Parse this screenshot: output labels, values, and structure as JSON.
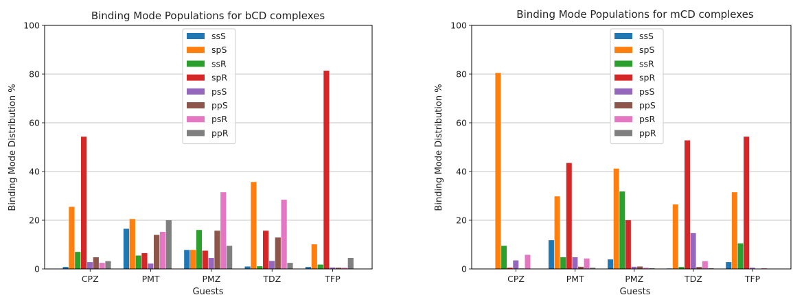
{
  "chart_data": [
    {
      "type": "bar",
      "title": "Binding Mode Populations for bCD complexes",
      "xlabel": "Guests",
      "ylabel": "Binding Mode Distribution %",
      "ylim": [
        0,
        100
      ],
      "yticks": [
        0,
        20,
        40,
        60,
        80,
        100
      ],
      "grid": "y",
      "legend_position": "top-center",
      "categories": [
        "CPZ",
        "PMT",
        "PMZ",
        "TDZ",
        "TFP"
      ],
      "series": [
        {
          "name": "ssS",
          "color": "#1f77b4",
          "values": [
            0.8,
            16.5,
            7.8,
            1.0,
            0.8
          ]
        },
        {
          "name": "spS",
          "color": "#ff7f0e",
          "values": [
            25.5,
            20.5,
            7.8,
            35.7,
            10.1
          ]
        },
        {
          "name": "ssR",
          "color": "#2ca02c",
          "values": [
            7.0,
            5.5,
            16.0,
            1.1,
            1.8
          ]
        },
        {
          "name": "spR",
          "color": "#d62728",
          "values": [
            54.3,
            6.5,
            7.5,
            15.7,
            81.4
          ]
        },
        {
          "name": "psS",
          "color": "#9467bd",
          "values": [
            2.8,
            2.2,
            4.5,
            3.3,
            0.6
          ]
        },
        {
          "name": "ppS",
          "color": "#8c564b",
          "values": [
            4.8,
            14.0,
            15.7,
            12.9,
            0.5
          ]
        },
        {
          "name": "psR",
          "color": "#e377c2",
          "values": [
            2.5,
            15.2,
            31.5,
            28.4,
            0.5
          ]
        },
        {
          "name": "ppR",
          "color": "#7f7f7f",
          "values": [
            3.2,
            20.0,
            9.5,
            2.5,
            4.5
          ]
        }
      ]
    },
    {
      "type": "bar",
      "title": "Binding Mode Populations for mCD complexes",
      "xlabel": "Guests",
      "ylabel": "Binding Mode Distribution %",
      "ylim": [
        0,
        100
      ],
      "yticks": [
        0,
        20,
        40,
        60,
        80,
        100
      ],
      "grid": "y",
      "legend_position": "top-center",
      "categories": [
        "CPZ",
        "PMT",
        "PMZ",
        "TDZ",
        "TFP"
      ],
      "series": [
        {
          "name": "ssS",
          "color": "#1f77b4",
          "values": [
            0.1,
            11.8,
            3.9,
            0.2,
            2.8
          ]
        },
        {
          "name": "spS",
          "color": "#ff7f0e",
          "values": [
            80.5,
            29.8,
            41.2,
            26.5,
            31.5
          ]
        },
        {
          "name": "ssR",
          "color": "#2ca02c",
          "values": [
            9.5,
            4.8,
            31.8,
            0.8,
            10.5
          ]
        },
        {
          "name": "spR",
          "color": "#d62728",
          "values": [
            0.5,
            43.5,
            20.0,
            52.8,
            54.3
          ]
        },
        {
          "name": "psS",
          "color": "#9467bd",
          "values": [
            3.5,
            4.8,
            0.9,
            14.7,
            0.5
          ]
        },
        {
          "name": "ppS",
          "color": "#8c564b",
          "values": [
            0.2,
            0.9,
            1.0,
            0.8,
            0.1
          ]
        },
        {
          "name": "psR",
          "color": "#e377c2",
          "values": [
            5.8,
            4.3,
            0.5,
            3.2,
            0.3
          ]
        },
        {
          "name": "ppR",
          "color": "#7f7f7f",
          "values": [
            0.1,
            0.5,
            0.3,
            0.3,
            0.1
          ]
        }
      ]
    }
  ]
}
